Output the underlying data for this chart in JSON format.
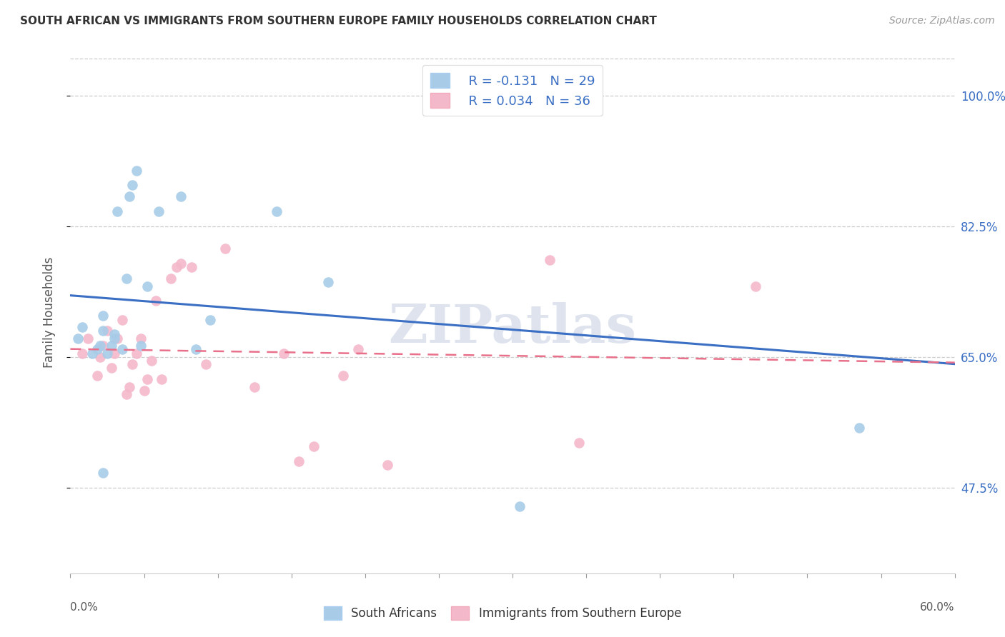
{
  "title": "SOUTH AFRICAN VS IMMIGRANTS FROM SOUTHERN EUROPE FAMILY HOUSEHOLDS CORRELATION CHART",
  "source": "Source: ZipAtlas.com",
  "ylabel": "Family Households",
  "ytick_vals": [
    47.5,
    65.0,
    82.5,
    100.0
  ],
  "xmin": 0.0,
  "xmax": 0.6,
  "ymin": 36.0,
  "ymax": 106.0,
  "legend_r1": "R = -0.131",
  "legend_n1": "N = 29",
  "legend_r2": "R = 0.034",
  "legend_n2": "N = 36",
  "legend_label1": "South Africans",
  "legend_label2": "Immigrants from Southern Europe",
  "blue_color": "#a8cce8",
  "pink_color": "#f4b8cb",
  "blue_line_color": "#3a6fc4",
  "pink_line_color": "#e8708a",
  "legend_text_color": "#3a6fc4",
  "ytick_label_color": "#3a6fc4",
  "watermark": "ZIPatlas",
  "blue_x": [
    0.005,
    0.008,
    0.015,
    0.018,
    0.02,
    0.022,
    0.022,
    0.022,
    0.025,
    0.028,
    0.03,
    0.03,
    0.032,
    0.035,
    0.038,
    0.04,
    0.042,
    0.045,
    0.048,
    0.052,
    0.06,
    0.075,
    0.085,
    0.095,
    0.14,
    0.175,
    0.27,
    0.305,
    0.535
  ],
  "blue_y": [
    67.5,
    69.0,
    65.5,
    66.0,
    66.5,
    68.5,
    70.5,
    49.5,
    65.5,
    66.5,
    67.5,
    68.0,
    84.5,
    66.0,
    75.5,
    86.5,
    88.0,
    90.0,
    66.5,
    74.5,
    84.5,
    86.5,
    66.0,
    70.0,
    84.5,
    75.0,
    99.5,
    45.0,
    55.5
  ],
  "pink_x": [
    0.008,
    0.012,
    0.018,
    0.02,
    0.022,
    0.025,
    0.028,
    0.03,
    0.032,
    0.035,
    0.038,
    0.04,
    0.042,
    0.045,
    0.048,
    0.05,
    0.052,
    0.055,
    0.058,
    0.062,
    0.068,
    0.072,
    0.075,
    0.082,
    0.092,
    0.105,
    0.125,
    0.145,
    0.155,
    0.165,
    0.185,
    0.195,
    0.215,
    0.325,
    0.345,
    0.465
  ],
  "pink_y": [
    65.5,
    67.5,
    62.5,
    65.0,
    66.5,
    68.5,
    63.5,
    65.5,
    67.5,
    70.0,
    60.0,
    61.0,
    64.0,
    65.5,
    67.5,
    60.5,
    62.0,
    64.5,
    72.5,
    62.0,
    75.5,
    77.0,
    77.5,
    77.0,
    64.0,
    79.5,
    61.0,
    65.5,
    51.0,
    53.0,
    62.5,
    66.0,
    50.5,
    78.0,
    53.5,
    74.5
  ]
}
